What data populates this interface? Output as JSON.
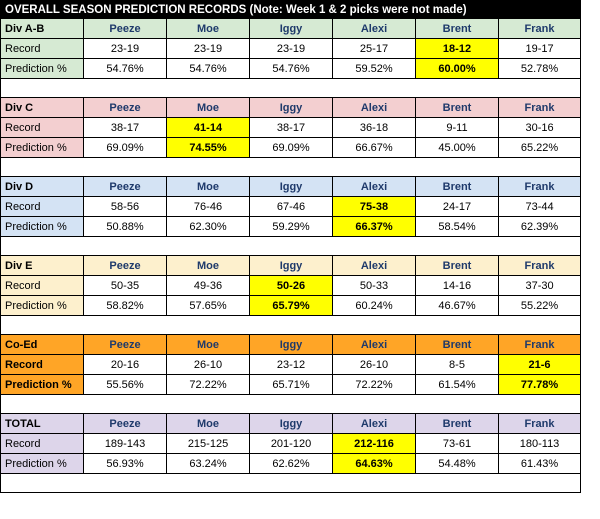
{
  "title": "OVERALL SEASON PREDICTION RECORDS (Note: Week 1 & 2 picks were not made)",
  "columns": [
    "Peeze",
    "Moe",
    "Iggy",
    "Alexi",
    "Brent",
    "Frank"
  ],
  "row_labels": {
    "record": "Record",
    "pct": "Prediction %"
  },
  "colors": {
    "ab": "#d6ead3",
    "c": "#f3cfd0",
    "d": "#d4e3f4",
    "e": "#fdf0cd",
    "coed": "#ffa526",
    "total": "#ddd5ea",
    "highlight": "#ffff00"
  },
  "divisions": [
    {
      "name": "Div A-B",
      "records": [
        "23-19",
        "23-19",
        "23-19",
        "25-17",
        "18-12",
        "19-17"
      ],
      "pcts": [
        "54.76%",
        "54.76%",
        "54.76%",
        "59.52%",
        "60.00%",
        "52.78%"
      ],
      "highlight": 4
    },
    {
      "name": "Div C",
      "records": [
        "38-17",
        "41-14",
        "38-17",
        "36-18",
        "9-11",
        "30-16"
      ],
      "pcts": [
        "69.09%",
        "74.55%",
        "69.09%",
        "66.67%",
        "45.00%",
        "65.22%"
      ],
      "highlight": 1
    },
    {
      "name": "Div D",
      "records": [
        "58-56",
        "76-46",
        "67-46",
        "75-38",
        "24-17",
        "73-44"
      ],
      "pcts": [
        "50.88%",
        "62.30%",
        "59.29%",
        "66.37%",
        "58.54%",
        "62.39%"
      ],
      "highlight": 3
    },
    {
      "name": "Div E",
      "records": [
        "50-35",
        "49-36",
        "50-26",
        "50-33",
        "14-16",
        "37-30"
      ],
      "pcts": [
        "58.82%",
        "57.65%",
        "65.79%",
        "60.24%",
        "46.67%",
        "55.22%"
      ],
      "highlight": 2
    },
    {
      "name": "Co-Ed",
      "records": [
        "20-16",
        "26-10",
        "23-12",
        "26-10",
        "8-5",
        "21-6"
      ],
      "pcts": [
        "55.56%",
        "72.22%",
        "65.71%",
        "72.22%",
        "61.54%",
        "77.78%"
      ],
      "highlight": 5
    },
    {
      "name": "TOTAL",
      "records": [
        "189-143",
        "215-125",
        "201-120",
        "212-116",
        "73-61",
        "180-113"
      ],
      "pcts": [
        "56.93%",
        "63.24%",
        "62.62%",
        "64.63%",
        "54.48%",
        "61.43%"
      ],
      "highlight": 3
    }
  ]
}
